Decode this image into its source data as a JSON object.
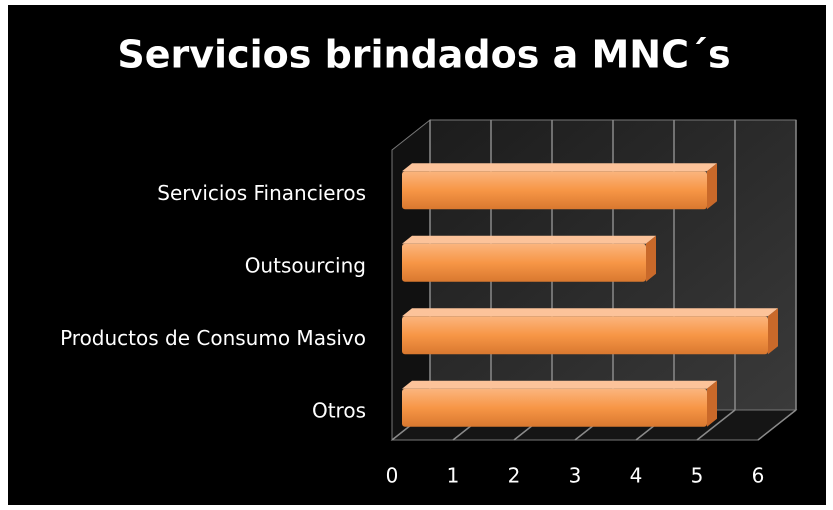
{
  "chart_data": {
    "type": "bar",
    "orientation": "horizontal",
    "title": "Servicios brindados a MNC´s",
    "categories": [
      "Servicios Financieros",
      "Outsourcing",
      "Productos de Consumo Masivo",
      "Otros"
    ],
    "values": [
      5,
      4,
      6,
      5
    ],
    "color": "#f79646",
    "xlim": [
      0,
      6
    ],
    "xticks": [
      0,
      1,
      2,
      3,
      4,
      5,
      6
    ],
    "grid": true
  }
}
